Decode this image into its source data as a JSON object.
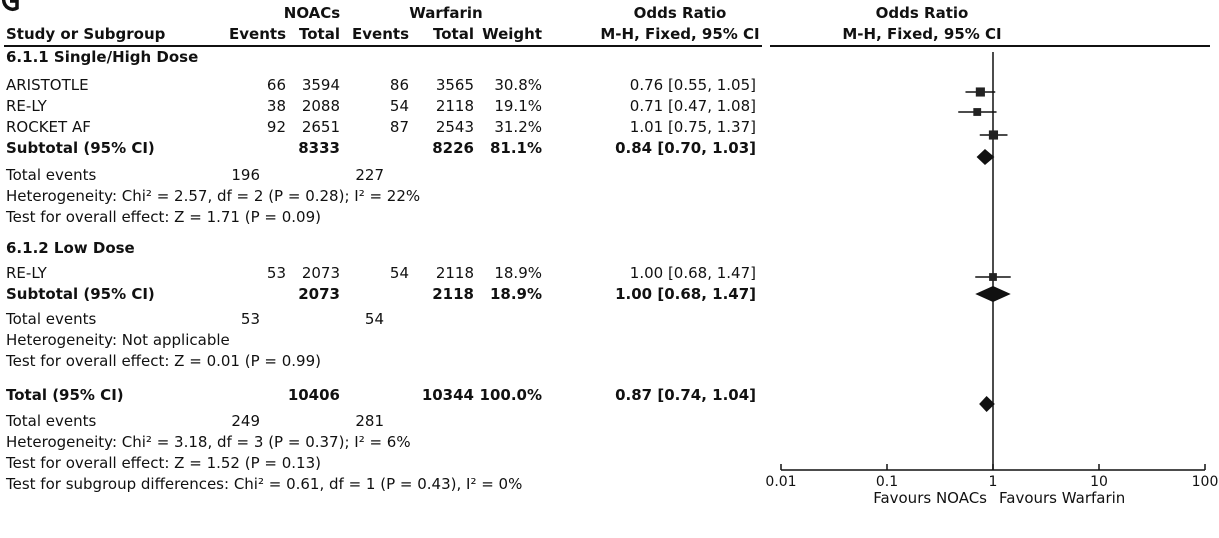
{
  "figure_letter": "G",
  "headers": {
    "group1": "NOACs",
    "group2": "Warfarin",
    "or_top": "Odds Ratio",
    "study": "Study or Subgroup",
    "events": "Events",
    "total": "Total",
    "weight": "Weight",
    "or_method": "M-H, Fixed, 95% CI",
    "plot_top": "Odds Ratio",
    "plot_method": "M-H, Fixed, 95% CI"
  },
  "subgroup1": {
    "title": "6.1.1 Single/High Dose",
    "studies": [
      {
        "name": "ARISTOTLE",
        "e1": "66",
        "t1": "3594",
        "e2": "86",
        "t2": "3565",
        "weight": "30.8%",
        "ci": "0.76 [0.55, 1.05]"
      },
      {
        "name": "RE-LY",
        "e1": "38",
        "t1": "2088",
        "e2": "54",
        "t2": "2118",
        "weight": "19.1%",
        "ci": "0.71 [0.47, 1.08]"
      },
      {
        "name": "ROCKET AF",
        "e1": "92",
        "t1": "2651",
        "e2": "87",
        "t2": "2543",
        "weight": "31.2%",
        "ci": "1.01 [0.75, 1.37]"
      }
    ],
    "subtotal": {
      "label": "Subtotal (95% CI)",
      "t1": "8333",
      "t2": "8226",
      "weight": "81.1%",
      "ci": "0.84 [0.70, 1.03]"
    },
    "total_events": {
      "label": "Total events",
      "e1": "196",
      "e2": "227"
    },
    "heterogeneity": "Heterogeneity: Chi² = 2.57, df = 2 (P = 0.28); I² = 22%",
    "overall": "Test for overall effect: Z = 1.71 (P = 0.09)"
  },
  "subgroup2": {
    "title": "6.1.2 Low Dose",
    "studies": [
      {
        "name": "RE-LY",
        "e1": "53",
        "t1": "2073",
        "e2": "54",
        "t2": "2118",
        "weight": "18.9%",
        "ci": "1.00 [0.68, 1.47]"
      }
    ],
    "subtotal": {
      "label": "Subtotal (95% CI)",
      "t1": "2073",
      "t2": "2118",
      "weight": "18.9%",
      "ci": "1.00 [0.68, 1.47]"
    },
    "total_events": {
      "label": "Total events",
      "e1": "53",
      "e2": "54"
    },
    "heterogeneity": "Heterogeneity: Not applicable",
    "overall": "Test for overall effect: Z = 0.01 (P = 0.99)"
  },
  "total": {
    "label": "Total (95% CI)",
    "t1": "10406",
    "t2": "10344",
    "weight": "100.0%",
    "ci": "0.87 [0.74, 1.04]",
    "total_events": {
      "label": "Total events",
      "e1": "249",
      "e2": "281"
    },
    "heterogeneity": "Heterogeneity: Chi² = 3.18, df = 3 (P = 0.37); I² = 6%",
    "overall": "Test for overall effect: Z = 1.52 (P = 0.13)",
    "subgroup_diff": "Test for subgroup differences: Chi² = 0.61, df = 1 (P = 0.43), I² = 0%"
  },
  "chart_data": {
    "type": "forest",
    "scale": "log",
    "xlim": [
      0.01,
      100
    ],
    "ticks": [
      0.01,
      0.1,
      1,
      10,
      100
    ],
    "tick_labels": [
      "0.01",
      "0.1",
      "1",
      "10",
      "100"
    ],
    "favours_left": "Favours NOACs",
    "favours_right": "Favours Warfarin",
    "studies": [
      {
        "name": "ARISTOTLE",
        "group": "6.1.1 Single/High Dose",
        "or": 0.76,
        "lo": 0.55,
        "hi": 1.05,
        "weight": 30.8
      },
      {
        "name": "RE-LY",
        "group": "6.1.1 Single/High Dose",
        "or": 0.71,
        "lo": 0.47,
        "hi": 1.08,
        "weight": 19.1
      },
      {
        "name": "ROCKET AF",
        "group": "6.1.1 Single/High Dose",
        "or": 1.01,
        "lo": 0.75,
        "hi": 1.37,
        "weight": 31.2
      },
      {
        "name": "RE-LY",
        "group": "6.1.2 Low Dose",
        "or": 1.0,
        "lo": 0.68,
        "hi": 1.47,
        "weight": 18.9
      }
    ],
    "diamonds": [
      {
        "name": "Subtotal 6.1.1",
        "or": 0.84,
        "lo": 0.7,
        "hi": 1.03
      },
      {
        "name": "Subtotal 6.1.2",
        "or": 1.0,
        "lo": 0.68,
        "hi": 1.47
      },
      {
        "name": "Total",
        "or": 0.87,
        "lo": 0.74,
        "hi": 1.04
      }
    ]
  }
}
